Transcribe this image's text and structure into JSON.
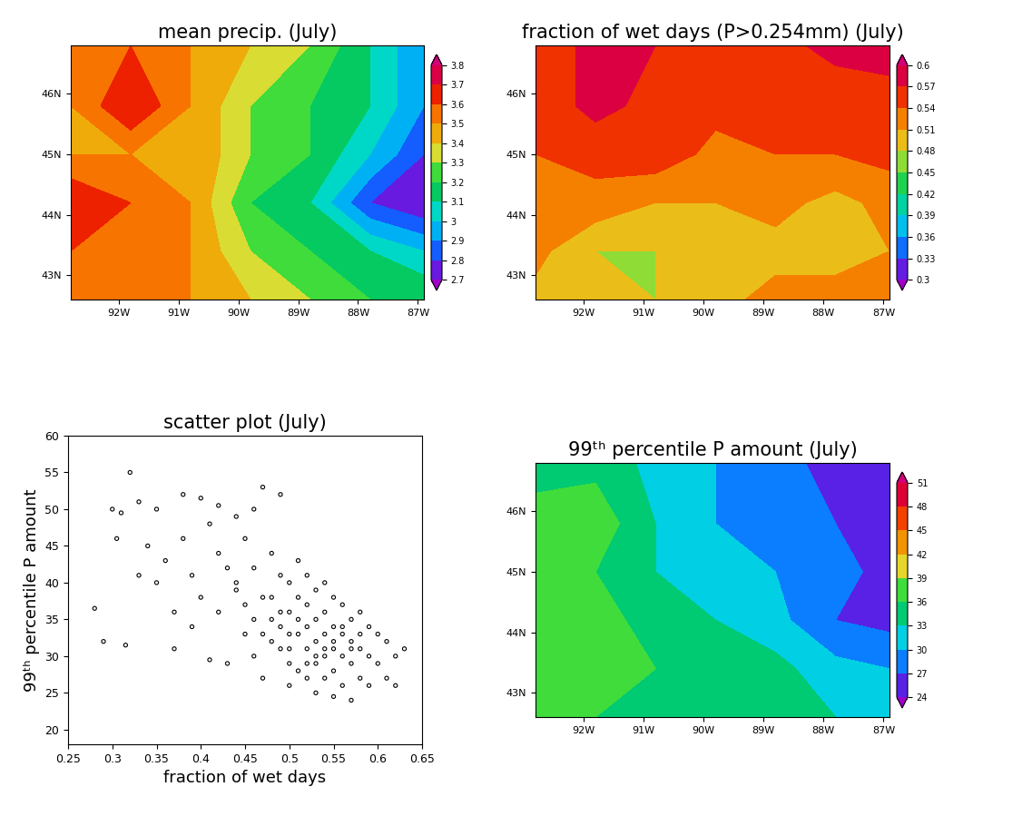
{
  "chart_data": [
    {
      "type": "heatmap",
      "title": "mean precip. (July)",
      "x": [
        -92.8,
        -91.8,
        -90.8,
        -89.8,
        -88.8,
        -87.8,
        -86.9
      ],
      "y": [
        42.6,
        43.4,
        44.2,
        45.0,
        45.8,
        46.8
      ],
      "cells": [
        [
          3.6,
          3.6,
          3.5,
          3.4,
          3.3,
          3.2,
          3.2
        ],
        [
          3.6,
          3.6,
          3.5,
          3.3,
          3.2,
          3.1,
          3.0
        ],
        [
          3.7,
          3.6,
          3.5,
          3.2,
          3.1,
          2.8,
          2.7
        ],
        [
          3.5,
          3.5,
          3.5,
          3.3,
          3.2,
          3.0,
          2.8
        ],
        [
          3.5,
          3.7,
          3.5,
          3.3,
          3.2,
          3.1,
          2.9
        ],
        [
          3.6,
          3.6,
          3.5,
          3.4,
          3.3,
          3.1,
          2.9
        ]
      ],
      "colorbar": {
        "range": [
          2.7,
          3.8
        ],
        "ticks": [
          2.7,
          2.8,
          2.9,
          3,
          3.1,
          3.2,
          3.3,
          3.4,
          3.5,
          3.6,
          3.7,
          3.8
        ]
      },
      "xlim": [
        -92.8,
        -86.9
      ],
      "ylim": [
        42.6,
        46.8
      ],
      "xticks": [
        {
          "value": -92,
          "label": "92W"
        },
        {
          "value": -91,
          "label": "91W"
        },
        {
          "value": -90,
          "label": "90W"
        },
        {
          "value": -89,
          "label": "89W"
        },
        {
          "value": -88,
          "label": "88W"
        },
        {
          "value": -87,
          "label": "87W"
        }
      ],
      "yticks": [
        {
          "value": 43,
          "label": "43N"
        },
        {
          "value": 44,
          "label": "44N"
        },
        {
          "value": 45,
          "label": "45N"
        },
        {
          "value": 46,
          "label": "46N"
        }
      ]
    },
    {
      "type": "heatmap",
      "title": "fraction of wet days (P>0.254mm) (July)",
      "x": [
        -92.8,
        -91.8,
        -90.8,
        -89.8,
        -88.8,
        -87.8,
        -86.9
      ],
      "y": [
        42.6,
        43.4,
        44.2,
        45.0,
        45.8,
        46.8
      ],
      "cells": [
        [
          0.5,
          0.49,
          0.48,
          0.5,
          0.52,
          0.52,
          0.52
        ],
        [
          0.52,
          0.48,
          0.48,
          0.5,
          0.5,
          0.5,
          0.51
        ],
        [
          0.52,
          0.53,
          0.51,
          0.51,
          0.52,
          0.5,
          0.52
        ],
        [
          0.54,
          0.55,
          0.56,
          0.53,
          0.54,
          0.54,
          0.55
        ],
        [
          0.55,
          0.58,
          0.56,
          0.55,
          0.57,
          0.55,
          0.56
        ],
        [
          0.55,
          0.58,
          0.57,
          0.56,
          0.56,
          0.58,
          0.58
        ]
      ],
      "colorbar": {
        "range": [
          0.3,
          0.6
        ],
        "ticks": [
          0.3,
          0.33,
          0.36,
          0.39,
          0.42,
          0.45,
          0.48,
          0.51,
          0.54,
          0.57,
          0.6
        ]
      },
      "xlim": [
        -92.8,
        -86.9
      ],
      "ylim": [
        42.6,
        46.8
      ],
      "xticks": [
        {
          "value": -92,
          "label": "92W"
        },
        {
          "value": -91,
          "label": "91W"
        },
        {
          "value": -90,
          "label": "90W"
        },
        {
          "value": -89,
          "label": "89W"
        },
        {
          "value": -88,
          "label": "88W"
        },
        {
          "value": -87,
          "label": "87W"
        }
      ],
      "yticks": [
        {
          "value": 43,
          "label": "43N"
        },
        {
          "value": 44,
          "label": "44N"
        },
        {
          "value": 45,
          "label": "45N"
        },
        {
          "value": 46,
          "label": "46N"
        }
      ]
    },
    {
      "type": "scatter",
      "title": "scatter plot (July)",
      "x_label": "fraction of wet days",
      "y_label": "99ᵗʰ percentile P amount",
      "color": "#000000",
      "marker": "o",
      "x": [
        0.28,
        0.29,
        0.3,
        0.305,
        0.31,
        0.315,
        0.32,
        0.33,
        0.33,
        0.34,
        0.35,
        0.35,
        0.36,
        0.37,
        0.37,
        0.38,
        0.38,
        0.39,
        0.39,
        0.4,
        0.4,
        0.41,
        0.41,
        0.42,
        0.42,
        0.42,
        0.43,
        0.43,
        0.44,
        0.44,
        0.45,
        0.45,
        0.46,
        0.46,
        0.46,
        0.47,
        0.47,
        0.47,
        0.48,
        0.48,
        0.49,
        0.49,
        0.49,
        0.5,
        0.5,
        0.5,
        0.5,
        0.51,
        0.51,
        0.51,
        0.51,
        0.52,
        0.52,
        0.52,
        0.52,
        0.52,
        0.53,
        0.53,
        0.53,
        0.53,
        0.53,
        0.54,
        0.54,
        0.54,
        0.54,
        0.54,
        0.55,
        0.55,
        0.55,
        0.55,
        0.55,
        0.56,
        0.56,
        0.56,
        0.56,
        0.57,
        0.57,
        0.57,
        0.57,
        0.58,
        0.58,
        0.58,
        0.59,
        0.59,
        0.59,
        0.6,
        0.6,
        0.61,
        0.61,
        0.62,
        0.62,
        0.63,
        0.48,
        0.49,
        0.5,
        0.51,
        0.52,
        0.53,
        0.54,
        0.55,
        0.56,
        0.57,
        0.58,
        0.44,
        0.45,
        0.46,
        0.47,
        0.48,
        0.49,
        0.5
      ],
      "values": [
        36.5,
        32,
        50,
        46,
        49.5,
        31.5,
        55,
        51,
        41,
        45,
        50,
        40,
        43,
        31,
        36,
        52,
        46,
        41,
        34,
        51.5,
        38,
        48,
        29.5,
        50.5,
        44,
        36,
        42,
        29,
        49,
        39,
        46,
        33,
        50,
        42,
        30,
        53,
        38,
        27,
        44,
        35,
        52,
        41,
        31,
        40,
        36,
        29,
        26,
        43,
        38,
        33,
        28,
        41,
        37,
        34,
        31,
        27,
        39,
        35,
        32,
        29,
        25,
        40,
        36,
        33,
        30,
        27,
        38,
        34,
        31,
        28,
        24.5,
        37,
        33,
        30,
        26,
        35,
        32,
        29,
        24,
        36,
        31,
        27,
        34,
        30,
        26,
        33,
        29,
        32,
        27,
        30,
        26,
        31,
        38,
        36,
        33,
        35,
        29,
        30,
        31,
        32,
        34,
        31,
        33,
        40,
        37,
        35,
        33,
        32,
        34,
        31
      ],
      "xlim": [
        0.25,
        0.65
      ],
      "ylim": [
        18,
        60
      ],
      "xticks": [
        0.25,
        0.3,
        0.35,
        0.4,
        0.45,
        0.5,
        0.55,
        0.6,
        0.65
      ],
      "yticks": [
        20,
        25,
        30,
        35,
        40,
        45,
        50,
        55,
        60
      ]
    },
    {
      "type": "heatmap",
      "title": "99ᵗʰ percentile P amount (July)",
      "x": [
        -92.8,
        -91.8,
        -90.8,
        -89.8,
        -88.8,
        -87.8,
        -86.9
      ],
      "y": [
        42.6,
        43.4,
        44.2,
        45.0,
        45.8,
        46.8
      ],
      "cells": [
        [
          36,
          36,
          36,
          35,
          34,
          33,
          32
        ],
        [
          37,
          38,
          36,
          35,
          34,
          31,
          30
        ],
        [
          39,
          37,
          35,
          33,
          31,
          27,
          26
        ],
        [
          36,
          36,
          33,
          31,
          30,
          28,
          26
        ],
        [
          37,
          38,
          33,
          30,
          29,
          27,
          25
        ],
        [
          35,
          35,
          32,
          30,
          28,
          26,
          24
        ]
      ],
      "colorbar": {
        "range": [
          24,
          51
        ],
        "ticks": [
          24,
          27,
          30,
          33,
          36,
          39,
          42,
          45,
          48,
          51
        ]
      },
      "xlim": [
        -92.8,
        -86.9
      ],
      "ylim": [
        42.6,
        46.8
      ],
      "xticks": [
        {
          "value": -92,
          "label": "92W"
        },
        {
          "value": -91,
          "label": "91W"
        },
        {
          "value": -90,
          "label": "90W"
        },
        {
          "value": -89,
          "label": "89W"
        },
        {
          "value": -88,
          "label": "88W"
        },
        {
          "value": -87,
          "label": "87W"
        }
      ],
      "yticks": [
        {
          "value": 43,
          "label": "43N"
        },
        {
          "value": 44,
          "label": "44N"
        },
        {
          "value": 45,
          "label": "45N"
        },
        {
          "value": 46,
          "label": "46N"
        }
      ]
    }
  ]
}
